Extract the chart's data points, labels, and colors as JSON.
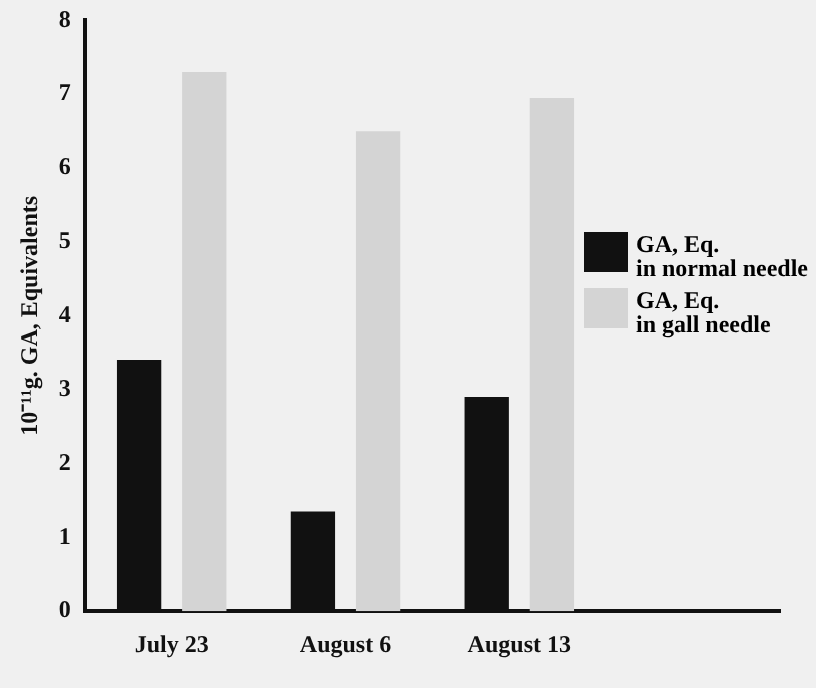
{
  "chart_data": {
    "type": "bar",
    "ylabel": "10⁻¹¹g. GA, Equivalents",
    "categories": [
      "July 23",
      "August 6",
      "August 13",
      null
    ],
    "series": [
      {
        "name": "GA, Eq.\nin normal needle",
        "color": "#111111",
        "values": [
          3.4,
          1.35,
          2.9,
          null
        ]
      },
      {
        "name": "GA, Eq.\nin gall needle",
        "color": "#d4d4d4",
        "values": [
          7.3,
          6.5,
          6.95,
          null
        ]
      }
    ],
    "ylim": [
      0,
      8
    ],
    "yticks": [
      0,
      1,
      2,
      3,
      4,
      5,
      6,
      7,
      8
    ],
    "grid": false,
    "legend": "right"
  }
}
